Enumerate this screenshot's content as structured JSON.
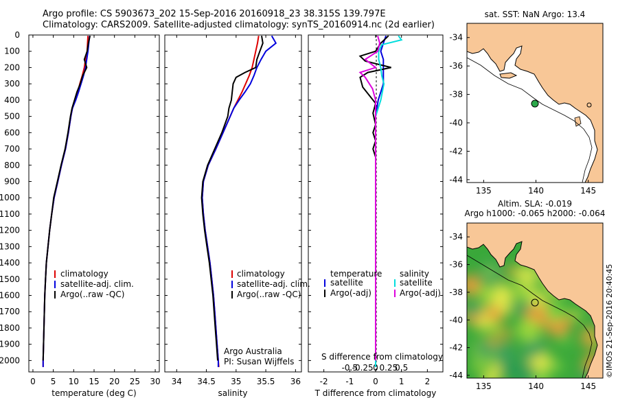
{
  "header": {
    "line1": "Argo profile: CS 5903673_202 15-Sep-2016 20160918_23 38.315S 139.797E",
    "line2": "Climatology: CARS2009. Satellite-adjusted climatology: synTS_20160914.nc (2d earlier)"
  },
  "chart_data": [
    {
      "type": "line",
      "xlabel": "temperature (deg C)",
      "xlim": [
        -1,
        31
      ],
      "xticks": [
        "0",
        "5",
        "10",
        "15",
        "20",
        "25",
        "30"
      ],
      "ylim": [
        0,
        2070
      ],
      "yticks": [
        "0",
        "100",
        "200",
        "300",
        "400",
        "500",
        "600",
        "700",
        "800",
        "900",
        "1000",
        "1100",
        "1200",
        "1300",
        "1400",
        "1500",
        "1600",
        "1700",
        "1800",
        "1900",
        "2000"
      ],
      "legend": [
        "climatology",
        "satellite-adj. clim.",
        "Argo(..raw -QC)"
      ],
      "series": [
        {
          "name": "climatology",
          "color": "#dd0000",
          "points": [
            [
              13.5,
              5
            ],
            [
              13.4,
              50
            ],
            [
              13.3,
              100
            ],
            [
              12.9,
              150
            ],
            [
              12.6,
              200
            ],
            [
              12.1,
              250
            ],
            [
              11.5,
              300
            ],
            [
              11.0,
              350
            ],
            [
              10.4,
              400
            ],
            [
              9.7,
              450
            ],
            [
              9.3,
              500
            ],
            [
              8.7,
              600
            ],
            [
              8.0,
              700
            ],
            [
              7.0,
              800
            ],
            [
              6.1,
              900
            ],
            [
              5.2,
              1000
            ],
            [
              4.6,
              1100
            ],
            [
              4.1,
              1200
            ],
            [
              3.7,
              1300
            ],
            [
              3.3,
              1400
            ],
            [
              3.1,
              1500
            ],
            [
              2.9,
              1600
            ],
            [
              2.8,
              1700
            ],
            [
              2.7,
              1800
            ],
            [
              2.6,
              1900
            ],
            [
              2.5,
              2000
            ],
            [
              2.5,
              2040
            ]
          ]
        },
        {
          "name": "satellite-adj. clim.",
          "color": "#0000dd",
          "points": [
            [
              13.9,
              5
            ],
            [
              13.7,
              50
            ],
            [
              13.5,
              100
            ],
            [
              13.2,
              150
            ],
            [
              12.9,
              200
            ],
            [
              12.4,
              250
            ],
            [
              11.8,
              300
            ],
            [
              11.2,
              350
            ],
            [
              10.5,
              400
            ],
            [
              9.7,
              450
            ],
            [
              9.3,
              500
            ],
            [
              8.7,
              600
            ],
            [
              8.0,
              700
            ],
            [
              7.0,
              800
            ],
            [
              6.1,
              900
            ],
            [
              5.2,
              1000
            ],
            [
              4.6,
              1100
            ],
            [
              4.1,
              1200
            ],
            [
              3.7,
              1300
            ],
            [
              3.3,
              1400
            ],
            [
              3.1,
              1500
            ],
            [
              2.9,
              1600
            ],
            [
              2.8,
              1700
            ],
            [
              2.7,
              1800
            ],
            [
              2.6,
              1900
            ],
            [
              2.5,
              2000
            ],
            [
              2.5,
              2040
            ]
          ]
        },
        {
          "name": "Argo(..raw -QC)",
          "color": "#000000",
          "points": [
            [
              14.0,
              5
            ],
            [
              13.6,
              50
            ],
            [
              13.3,
              100
            ],
            [
              12.6,
              150
            ],
            [
              13.2,
              200
            ],
            [
              12.2,
              250
            ],
            [
              11.6,
              300
            ],
            [
              10.8,
              350
            ],
            [
              10.2,
              400
            ],
            [
              9.6,
              450
            ],
            [
              9.2,
              500
            ],
            [
              8.6,
              600
            ],
            [
              7.9,
              700
            ],
            [
              6.9,
              800
            ],
            [
              6.0,
              900
            ],
            [
              5.1,
              1000
            ],
            [
              4.6,
              1100
            ],
            [
              4.1,
              1200
            ],
            [
              3.7,
              1300
            ],
            [
              3.3,
              1400
            ],
            [
              3.1,
              1500
            ],
            [
              2.9,
              1600
            ],
            [
              2.8,
              1700
            ],
            [
              2.7,
              1800
            ],
            [
              2.6,
              1900
            ],
            [
              2.5,
              2000
            ]
          ]
        }
      ]
    },
    {
      "type": "line",
      "xlabel": "salinity",
      "xlim": [
        33.8,
        36.1
      ],
      "xticks": [
        "34",
        "34.5",
        "35",
        "35.5",
        "36"
      ],
      "ylim": [
        0,
        2070
      ],
      "legend": [
        "climatology",
        "satellite-adj. clim.",
        "Argo(..raw -QC)"
      ],
      "annotation": [
        "Argo Australia",
        "PI: Susan Wijffels"
      ],
      "series": [
        {
          "name": "climatology",
          "color": "#dd0000",
          "points": [
            [
              35.38,
              5
            ],
            [
              35.36,
              50
            ],
            [
              35.33,
              100
            ],
            [
              35.3,
              150
            ],
            [
              35.27,
              200
            ],
            [
              35.22,
              250
            ],
            [
              35.16,
              300
            ],
            [
              35.1,
              350
            ],
            [
              35.03,
              400
            ],
            [
              34.96,
              450
            ],
            [
              34.9,
              500
            ],
            [
              34.78,
              600
            ],
            [
              34.66,
              700
            ],
            [
              34.53,
              800
            ],
            [
              34.45,
              900
            ],
            [
              34.43,
              1000
            ],
            [
              34.45,
              1100
            ],
            [
              34.48,
              1200
            ],
            [
              34.52,
              1300
            ],
            [
              34.56,
              1400
            ],
            [
              34.59,
              1500
            ],
            [
              34.62,
              1600
            ],
            [
              34.64,
              1700
            ],
            [
              34.66,
              1800
            ],
            [
              34.68,
              1900
            ],
            [
              34.7,
              2000
            ],
            [
              34.71,
              2040
            ]
          ]
        },
        {
          "name": "satellite-adj. clim.",
          "color": "#0000dd",
          "points": [
            [
              35.6,
              5
            ],
            [
              35.67,
              50
            ],
            [
              35.5,
              100
            ],
            [
              35.42,
              150
            ],
            [
              35.35,
              200
            ],
            [
              35.3,
              250
            ],
            [
              35.24,
              300
            ],
            [
              35.15,
              350
            ],
            [
              35.05,
              400
            ],
            [
              34.96,
              450
            ],
            [
              34.9,
              500
            ],
            [
              34.78,
              600
            ],
            [
              34.66,
              700
            ],
            [
              34.53,
              800
            ],
            [
              34.45,
              900
            ],
            [
              34.43,
              1000
            ],
            [
              34.45,
              1100
            ],
            [
              34.48,
              1200
            ],
            [
              34.52,
              1300
            ],
            [
              34.56,
              1400
            ],
            [
              34.59,
              1500
            ],
            [
              34.62,
              1600
            ],
            [
              34.64,
              1700
            ],
            [
              34.66,
              1800
            ],
            [
              34.68,
              1900
            ],
            [
              34.7,
              2000
            ],
            [
              34.7,
              2040
            ]
          ]
        },
        {
          "name": "Argo(..raw -QC)",
          "color": "#000000",
          "points": [
            [
              35.43,
              5
            ],
            [
              35.45,
              50
            ],
            [
              35.4,
              100
            ],
            [
              35.35,
              150
            ],
            [
              35.33,
              200
            ],
            [
              35.15,
              230
            ],
            [
              35.0,
              260
            ],
            [
              34.95,
              300
            ],
            [
              34.92,
              400
            ],
            [
              34.88,
              450
            ],
            [
              34.86,
              500
            ],
            [
              34.76,
              600
            ],
            [
              34.64,
              700
            ],
            [
              34.52,
              800
            ],
            [
              34.44,
              900
            ],
            [
              34.42,
              1000
            ],
            [
              34.44,
              1100
            ],
            [
              34.47,
              1200
            ],
            [
              34.51,
              1300
            ],
            [
              34.55,
              1400
            ],
            [
              34.58,
              1500
            ],
            [
              34.61,
              1600
            ],
            [
              34.63,
              1700
            ],
            [
              34.65,
              1800
            ],
            [
              34.67,
              1900
            ],
            [
              34.69,
              2000
            ]
          ]
        }
      ]
    },
    {
      "type": "line",
      "xlabel": "T difference from climatology",
      "x2label": "S difference from climatology",
      "xlim": [
        -2.6,
        2.6
      ],
      "xticks": [
        "-2",
        "-1",
        "0",
        "1",
        "2"
      ],
      "x2ticks": [
        "-0.5",
        "-0.25",
        "0",
        "0.25",
        "0.5"
      ],
      "ylim": [
        0,
        2070
      ],
      "legend_temperature": {
        "heading": "temperature",
        "items": [
          "satellite",
          "Argo(-adj)"
        ]
      },
      "legend_salinity": {
        "heading": "salinity",
        "items": [
          "satellite",
          "Argo(-adj)"
        ]
      },
      "series": [
        {
          "name": "satellite",
          "quantity": "temperature",
          "color": "#0000dd",
          "points": [
            [
              0.4,
              5
            ],
            [
              0.3,
              50
            ],
            [
              0.2,
              100
            ],
            [
              0.3,
              150
            ],
            [
              0.3,
              200
            ],
            [
              0.3,
              250
            ],
            [
              0.3,
              300
            ],
            [
              0.1,
              400
            ],
            [
              0.0,
              500
            ],
            [
              0.0,
              700
            ],
            [
              0.0,
              1000
            ],
            [
              0.0,
              1500
            ],
            [
              0.0,
              2040
            ]
          ]
        },
        {
          "name": "Argo(-adj)",
          "quantity": "temperature",
          "color": "#000000",
          "points": [
            [
              0.5,
              5
            ],
            [
              0.2,
              50
            ],
            [
              0.0,
              100
            ],
            [
              -0.6,
              130
            ],
            [
              -0.4,
              160
            ],
            [
              0.6,
              200
            ],
            [
              -0.3,
              230
            ],
            [
              -0.6,
              260
            ],
            [
              -0.5,
              320
            ],
            [
              -0.2,
              380
            ],
            [
              0.0,
              420
            ],
            [
              -0.1,
              480
            ],
            [
              0.0,
              550
            ],
            [
              -0.1,
              600
            ],
            [
              0.0,
              650
            ],
            [
              -0.1,
              700
            ],
            [
              0.0,
              750
            ],
            [
              0.0,
              800
            ],
            [
              0.0,
              1000
            ],
            [
              0.0,
              1500
            ],
            [
              0.0,
              2000
            ]
          ]
        },
        {
          "name": "satellite",
          "quantity": "salinity",
          "color": "#00dddd",
          "points": [
            [
              0.22,
              5
            ],
            [
              0.25,
              30
            ],
            [
              0.06,
              60
            ],
            [
              0.03,
              100
            ],
            [
              0.03,
              150
            ],
            [
              0.05,
              200
            ],
            [
              0.06,
              250
            ],
            [
              0.08,
              300
            ],
            [
              0.05,
              400
            ],
            [
              0.0,
              500
            ],
            [
              0.0,
              1000
            ],
            [
              0.0,
              1500
            ],
            [
              0.0,
              2040
            ]
          ]
        },
        {
          "name": "Argo(-adj)",
          "quantity": "salinity",
          "color": "#dd00dd",
          "points": [
            [
              0.02,
              5
            ],
            [
              0.04,
              50
            ],
            [
              0.02,
              100
            ],
            [
              -0.1,
              150
            ],
            [
              0.0,
              200
            ],
            [
              -0.15,
              230
            ],
            [
              -0.1,
              260
            ],
            [
              -0.03,
              330
            ],
            [
              0.0,
              400
            ],
            [
              0.0,
              500
            ],
            [
              0.0,
              1000
            ],
            [
              0.0,
              1500
            ],
            [
              0.0,
              2000
            ]
          ]
        }
      ]
    },
    {
      "type": "map",
      "title": "sat. SST: NaN Argo: 13.4",
      "xticks": [
        "135",
        "140",
        "145"
      ],
      "yticks": [
        "-34",
        "-36",
        "-38",
        "-40",
        "-42",
        "-44"
      ],
      "marker": {
        "lon": 139.8,
        "lat": -38.3,
        "color": "#2ba84a"
      }
    },
    {
      "type": "heatmap",
      "title_line1": "Altim. SLA: -0.019",
      "title_line2": "Argo h1000: -0.065 h2000: -0.064",
      "xticks": [
        "135",
        "140",
        "145"
      ],
      "yticks": [
        "-34",
        "-36",
        "-38",
        "-40",
        "-42",
        "-44"
      ],
      "marker": {
        "lon": 139.8,
        "lat": -38.3
      }
    }
  ],
  "credit": "©IMOS 21-Sep-2016 20:40:45"
}
